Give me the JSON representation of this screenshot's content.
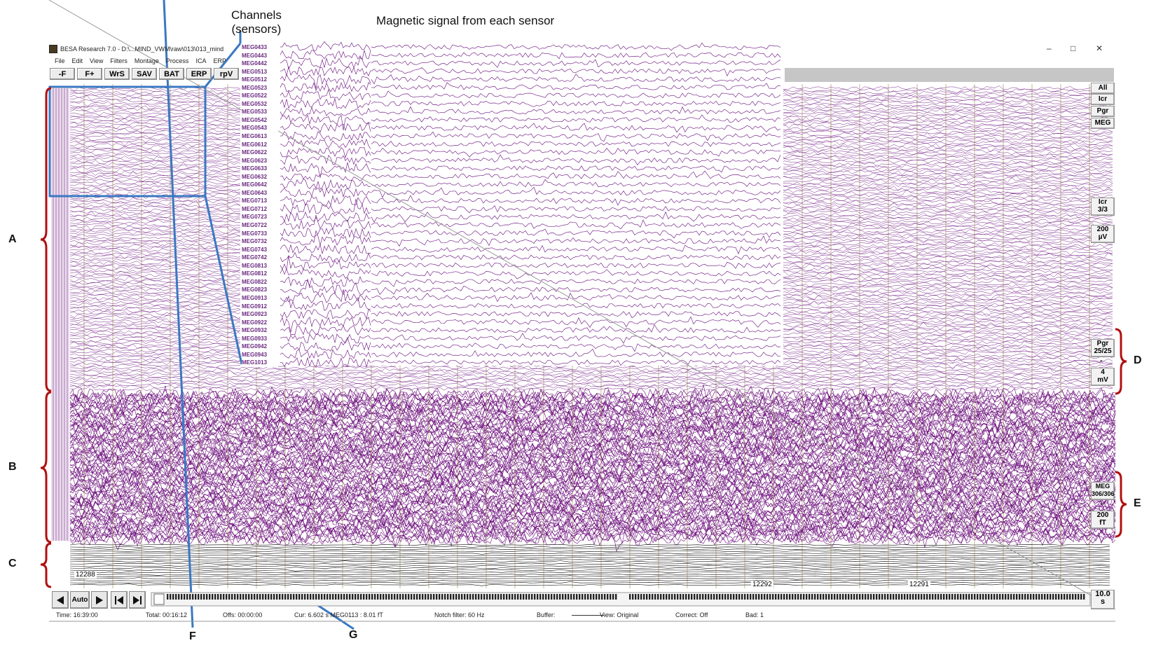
{
  "annotations": {
    "channels_label": [
      "Channels",
      "(sensors)"
    ],
    "signal_label": "Magnetic signal from each sensor",
    "letters": [
      "A",
      "B",
      "C",
      "D",
      "E",
      "F",
      "G"
    ]
  },
  "window": {
    "title": "BESA Research 7.0 - D:\\...MIND_VWM\\raw\\013\\013_mind",
    "controls": [
      "–",
      "□",
      "✕"
    ]
  },
  "menu": [
    "File",
    "Edit",
    "View",
    "Filters",
    "Montage",
    "Process",
    "ICA",
    "ERP"
  ],
  "toolbar": [
    "-F",
    "F+",
    "WrS",
    "SAV",
    "BAT",
    "ERP",
    "rpV"
  ],
  "side_buttons": {
    "top": [
      "All",
      "Icr",
      "Pgr",
      "MEG"
    ],
    "icr": [
      "Icr",
      "3/3"
    ],
    "scale1": [
      "200",
      "µV"
    ],
    "pgr": [
      "Pgr",
      "25/25"
    ],
    "dash1": "-",
    "scale2": [
      "4",
      "mV"
    ],
    "meg": [
      "MEG",
      "306/306"
    ],
    "dash2": "-",
    "scale3": [
      "200",
      "fT"
    ],
    "page": [
      "10.0",
      "s"
    ]
  },
  "channels": [
    "MEG0433",
    "MEG0443",
    "MEG0442",
    "MEG0513",
    "MEG0512",
    "MEG0523",
    "MEG0522",
    "MEG0532",
    "MEG0533",
    "MEG0542",
    "MEG0543",
    "MEG0613",
    "MEG0612",
    "MEG0622",
    "MEG0623",
    "MEG0633",
    "MEG0632",
    "MEG0642",
    "MEG0643",
    "MEG0713",
    "MEG0712",
    "MEG0723",
    "MEG0722",
    "MEG0733",
    "MEG0732",
    "MEG0743",
    "MEG0742",
    "MEG0813",
    "MEG0812",
    "MEG0822",
    "MEG0823",
    "MEG0913",
    "MEG0912",
    "MEG0923",
    "MEG0922",
    "MEG0932",
    "MEG0933",
    "MEG0942",
    "MEG0943",
    "MEG1013"
  ],
  "epochs": [
    "12288",
    "12292",
    "12291"
  ],
  "nav": {
    "auto_label": "Auto",
    "prev_icon": "arrow-left-icon",
    "next_icon": "arrow-right-icon"
  },
  "status": {
    "time": "Time: 16:39:00",
    "total": "Total: 00:16:12",
    "offs": "Offs: 00:00:00",
    "cur": "Cur: 6.602 s  MEG0113 : 8.01 fT",
    "notch": "Notch filter: 60 Hz",
    "buffer": "Buffer:",
    "view": "View: Original",
    "correct": "Correct: Off",
    "bad": "Bad: 1"
  },
  "colors": {
    "eeg_trace": "#7a2a8c",
    "meg_trace": "#6a0a7a",
    "misc_trace": "#111111",
    "annotation_red": "#b01010",
    "annotation_blue": "#3a78c2",
    "header_gray": "#c6c6c6"
  }
}
